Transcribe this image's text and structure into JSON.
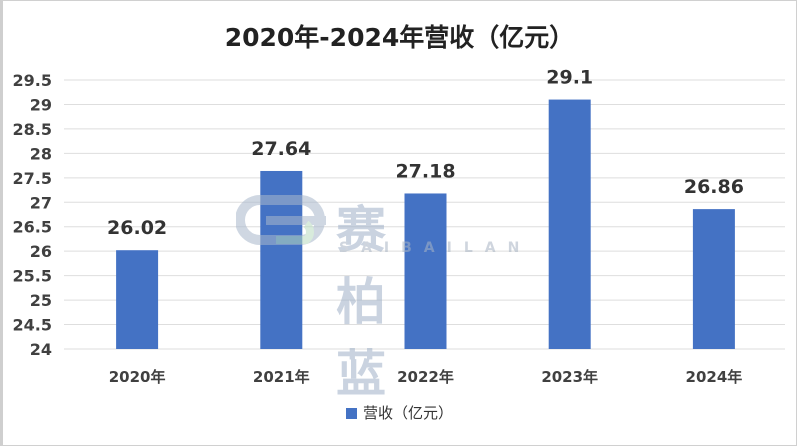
{
  "chart_data": {
    "type": "bar",
    "title": "2020年-2024年营收（亿元）",
    "categories": [
      "2020年",
      "2021年",
      "2022年",
      "2023年",
      "2024年"
    ],
    "series": [
      {
        "name": "营收（亿元）",
        "values": [
          26.02,
          27.64,
          27.18,
          29.1,
          26.86
        ],
        "color": "#4472C4"
      }
    ],
    "data_labels": [
      "26.02",
      "27.64",
      "27.18",
      "29.1",
      "26.86"
    ],
    "ylim": [
      24,
      29.5
    ],
    "yticks": [
      "24",
      "24.5",
      "25",
      "25.5",
      "26",
      "26.5",
      "27",
      "27.5",
      "28",
      "28.5",
      "29",
      "29.5"
    ],
    "grid": true,
    "legend": "bottom"
  },
  "watermark": {
    "text": "赛柏蓝",
    "subtext": "SAIBAILAN"
  }
}
